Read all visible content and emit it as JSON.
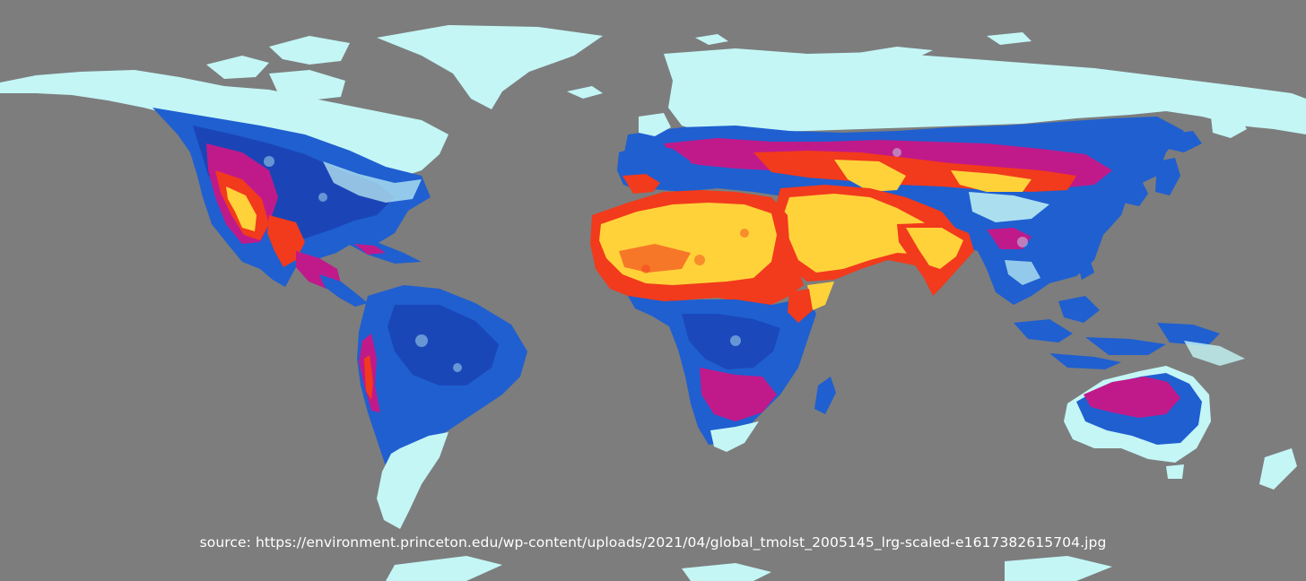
{
  "map": {
    "palette": {
      "ocean": "#7d7d7d",
      "cold": "#c4f6f6",
      "cool": "#1f5fd0",
      "deep_blue": "#1a3fb0",
      "warm": "#c01a8a",
      "hot": "#f23a1c",
      "very_hot": "#ffd23a"
    }
  },
  "caption": {
    "source": "source: https://environment.princeton.edu/wp-content/uploads/2021/04/global_tmolst_2005145_lrg-scaled-e1617382615704.jpg"
  }
}
